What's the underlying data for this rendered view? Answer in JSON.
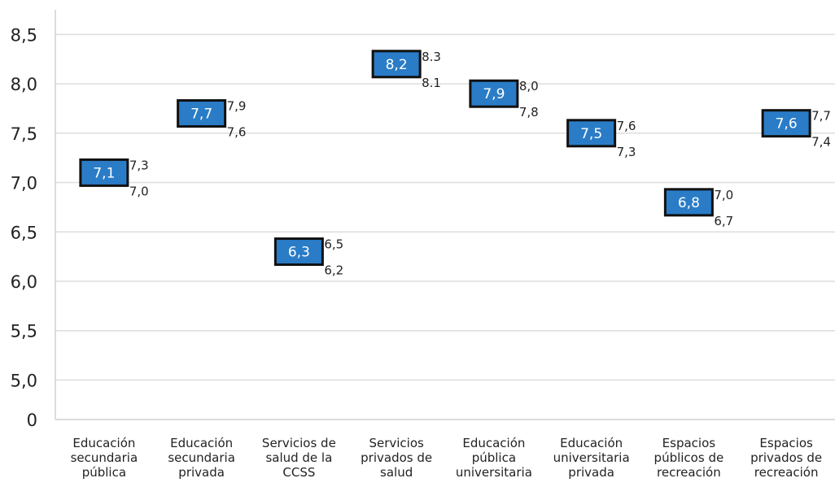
{
  "chart_data": {
    "type": "scatter",
    "title": "",
    "xlabel": "",
    "ylabel": "",
    "y_ticks": [
      "0",
      "5,0",
      "5,5",
      "6,0",
      "6,5",
      "7,0",
      "7,5",
      "8,0",
      "8,5"
    ],
    "y_tick_values": [
      4.6,
      5.0,
      5.5,
      6.0,
      6.5,
      7.0,
      7.5,
      8.0,
      8.5
    ],
    "ylim": [
      4.6,
      8.75
    ],
    "axis_break": "between 0 and 5,0",
    "grid": "horizontal",
    "legend": "none",
    "categories": [
      [
        "Educación",
        "secundaria",
        "pública"
      ],
      [
        "Educación",
        "secundaria",
        "privada"
      ],
      [
        "Servicios de",
        "salud de la",
        "CCSS"
      ],
      [
        "Servicios",
        "privados de",
        "salud"
      ],
      [
        "Educación",
        "pública",
        "universitaria"
      ],
      [
        "Educación",
        "universitaria",
        "privada"
      ],
      [
        "Espacios",
        "públicos de",
        "recreación"
      ],
      [
        "Espacios",
        "privados de",
        "recreación"
      ]
    ],
    "values": [
      7.1,
      7.7,
      6.3,
      8.2,
      7.9,
      7.5,
      6.8,
      7.6
    ],
    "value_labels": [
      "7,1",
      "7,7",
      "6,3",
      "8,2",
      "7,9",
      "7,5",
      "6,8",
      "7,6"
    ],
    "upper": [
      7.3,
      7.9,
      6.5,
      8.3,
      8.0,
      7.6,
      7.0,
      7.7
    ],
    "upper_labels": [
      "7,3",
      "7,9",
      "6,5",
      "8.3",
      "8,0",
      "7,6",
      "7,0",
      "7,7"
    ],
    "lower": [
      7.0,
      7.6,
      6.2,
      8.1,
      7.8,
      7.3,
      6.7,
      7.4
    ],
    "lower_labels": [
      "7,0",
      "7,6",
      "6,2",
      "8.1",
      "7,8",
      "7,3",
      "6,7",
      "7,4"
    ],
    "colors": {
      "marker_fill": "#2a7cc7",
      "marker_border": "#111111",
      "grid": "#dddddd",
      "axis": "#d0d0d0"
    }
  }
}
